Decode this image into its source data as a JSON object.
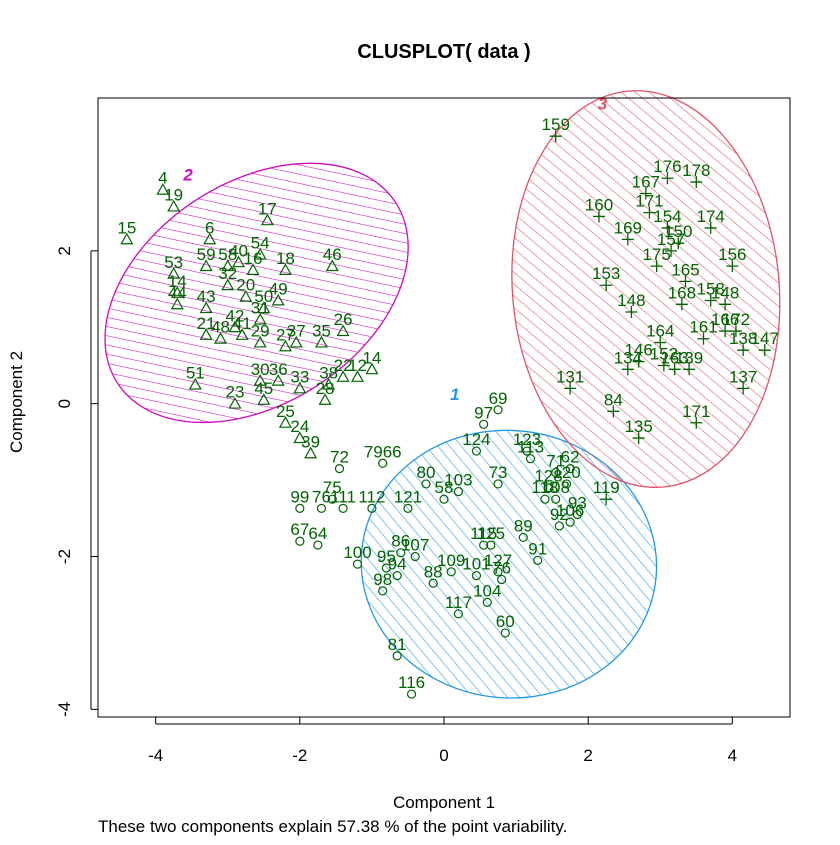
{
  "chart_data": {
    "type": "scatter",
    "title": "CLUSPLOT( data )",
    "xlabel": "Component 1",
    "ylabel": "Component 2",
    "subtitle": "These two components explain 57.38 % of the point variability.",
    "xlim": [
      -4.8,
      4.8
    ],
    "ylim": [
      -4.1,
      4.0
    ],
    "x_ticks": [
      -4,
      -2,
      0,
      2,
      4
    ],
    "y_ticks": [
      -4,
      -2,
      0,
      2
    ],
    "x_tick_labels": [
      "-4",
      "-2",
      "0",
      "2",
      "4"
    ],
    "y_tick_labels": [
      "-4",
      "-2",
      "0",
      "2"
    ],
    "grid": false,
    "label_color": "#006400",
    "clusters": [
      {
        "name": "1",
        "color": "#2297E6",
        "marker": "circle",
        "ellipse": {
          "cx": 0.9,
          "cy": -2.1,
          "rx": 2.05,
          "ry": 1.75,
          "angle": 5
        },
        "label_pos": {
          "x": 0.15,
          "y": 0.05
        },
        "points": [
          {
            "id": "69",
            "x": 0.75,
            "y": -0.08
          },
          {
            "id": "97",
            "x": 0.55,
            "y": -0.27
          },
          {
            "id": "124",
            "x": 0.45,
            "y": -0.62
          },
          {
            "id": "123",
            "x": 1.15,
            "y": -0.62
          },
          {
            "id": "113",
            "x": 1.2,
            "y": -0.72
          },
          {
            "id": "7966",
            "x": -0.85,
            "y": -0.78
          },
          {
            "id": "72",
            "x": -1.45,
            "y": -0.85
          },
          {
            "id": "80",
            "x": -0.25,
            "y": -1.05
          },
          {
            "id": "73",
            "x": 0.75,
            "y": -1.05
          },
          {
            "id": "103",
            "x": 0.2,
            "y": -1.15
          },
          {
            "id": "58",
            "x": 0.0,
            "y": -1.25
          },
          {
            "id": "75",
            "x": -1.55,
            "y": -1.25
          },
          {
            "id": "99",
            "x": -2.0,
            "y": -1.37
          },
          {
            "id": "76",
            "x": -1.7,
            "y": -1.37
          },
          {
            "id": "111",
            "x": -1.4,
            "y": -1.37
          },
          {
            "id": "112",
            "x": -1.0,
            "y": -1.37
          },
          {
            "id": "121",
            "x": -0.5,
            "y": -1.37
          },
          {
            "id": "67",
            "x": -2.0,
            "y": -1.8
          },
          {
            "id": "64",
            "x": -1.75,
            "y": -1.85
          },
          {
            "id": "89",
            "x": 1.1,
            "y": -1.75
          },
          {
            "id": "86",
            "x": -0.6,
            "y": -1.95
          },
          {
            "id": "100",
            "x": -1.2,
            "y": -2.1
          },
          {
            "id": "95",
            "x": -0.8,
            "y": -2.15
          },
          {
            "id": "91",
            "x": 1.3,
            "y": -2.05
          },
          {
            "id": "94",
            "x": -0.65,
            "y": -2.25
          },
          {
            "id": "98",
            "x": -0.85,
            "y": -2.45
          },
          {
            "id": "117",
            "x": 0.2,
            "y": -2.75
          },
          {
            "id": "104",
            "x": 0.6,
            "y": -2.6
          },
          {
            "id": "60",
            "x": 0.85,
            "y": -3.0
          },
          {
            "id": "81",
            "x": -0.65,
            "y": -3.3
          },
          {
            "id": "116",
            "x": -0.45,
            "y": -3.8
          },
          {
            "id": "93",
            "x": 1.85,
            "y": -1.45
          },
          {
            "id": "92",
            "x": 1.6,
            "y": -1.6
          },
          {
            "id": "106",
            "x": 1.75,
            "y": -1.55
          },
          {
            "id": "71",
            "x": 1.55,
            "y": -0.9
          },
          {
            "id": "62",
            "x": 1.75,
            "y": -0.85
          },
          {
            "id": "120",
            "x": 1.7,
            "y": -1.05
          },
          {
            "id": "128",
            "x": 1.45,
            "y": -1.1
          },
          {
            "id": "118",
            "x": 1.4,
            "y": -1.25
          },
          {
            "id": "108",
            "x": 1.55,
            "y": -1.25
          },
          {
            "id": "115",
            "x": 0.55,
            "y": -1.85
          },
          {
            "id": "125",
            "x": 0.65,
            "y": -1.85
          },
          {
            "id": "127",
            "x": 0.75,
            "y": -2.2
          },
          {
            "id": "109",
            "x": 0.1,
            "y": -2.2
          },
          {
            "id": "88",
            "x": -0.15,
            "y": -2.35
          },
          {
            "id": "76b",
            "x": 0.8,
            "y": -2.3
          },
          {
            "id": "107",
            "x": -0.4,
            "y": -2.0
          },
          {
            "id": "101",
            "x": 0.45,
            "y": -2.25
          }
        ]
      },
      {
        "name": "2",
        "color": "#CD0BBC",
        "marker": "triangle",
        "ellipse": {
          "cx": -2.6,
          "cy": 1.45,
          "rx": 2.3,
          "ry": 1.45,
          "angle": -33
        },
        "label_pos": {
          "x": -3.55,
          "y": 2.92
        },
        "points": [
          {
            "id": "4",
            "x": -3.9,
            "y": 2.8
          },
          {
            "id": "19",
            "x": -3.75,
            "y": 2.58
          },
          {
            "id": "15",
            "x": -4.4,
            "y": 2.15
          },
          {
            "id": "6",
            "x": -3.25,
            "y": 2.15
          },
          {
            "id": "17",
            "x": -2.45,
            "y": 2.4
          },
          {
            "id": "46",
            "x": -1.55,
            "y": 1.8
          },
          {
            "id": "53",
            "x": -3.75,
            "y": 1.7
          },
          {
            "id": "59",
            "x": -3.3,
            "y": 1.8
          },
          {
            "id": "54",
            "x": -2.55,
            "y": 1.95
          },
          {
            "id": "40",
            "x": -2.85,
            "y": 1.85
          },
          {
            "id": "58",
            "x": -3.0,
            "y": 1.8
          },
          {
            "id": "16",
            "x": -2.65,
            "y": 1.75
          },
          {
            "id": "18",
            "x": -2.2,
            "y": 1.75
          },
          {
            "id": "14",
            "x": -3.7,
            "y": 1.45
          },
          {
            "id": "44",
            "x": -3.7,
            "y": 1.3
          },
          {
            "id": "43",
            "x": -3.3,
            "y": 1.25
          },
          {
            "id": "32",
            "x": -3.0,
            "y": 1.55
          },
          {
            "id": "49",
            "x": -2.3,
            "y": 1.35
          },
          {
            "id": "50",
            "x": -2.5,
            "y": 1.25
          },
          {
            "id": "21",
            "x": -3.3,
            "y": 0.9
          },
          {
            "id": "48",
            "x": -3.1,
            "y": 0.85
          },
          {
            "id": "41",
            "x": -2.8,
            "y": 0.9
          },
          {
            "id": "29",
            "x": -2.55,
            "y": 0.8
          },
          {
            "id": "27",
            "x": -2.2,
            "y": 0.75
          },
          {
            "id": "37",
            "x": -2.05,
            "y": 0.8
          },
          {
            "id": "35",
            "x": -1.7,
            "y": 0.8
          },
          {
            "id": "26",
            "x": -1.4,
            "y": 0.95
          },
          {
            "id": "51",
            "x": -3.45,
            "y": 0.25
          },
          {
            "id": "30",
            "x": -2.55,
            "y": 0.3
          },
          {
            "id": "36",
            "x": -2.3,
            "y": 0.3
          },
          {
            "id": "33",
            "x": -2.0,
            "y": 0.2
          },
          {
            "id": "38",
            "x": -1.6,
            "y": 0.25
          },
          {
            "id": "22",
            "x": -1.4,
            "y": 0.35
          },
          {
            "id": "12",
            "x": -1.2,
            "y": 0.35
          },
          {
            "id": "14b",
            "x": -1.0,
            "y": 0.45
          },
          {
            "id": "23",
            "x": -2.9,
            "y": 0.0
          },
          {
            "id": "45",
            "x": -2.5,
            "y": 0.05
          },
          {
            "id": "28",
            "x": -1.65,
            "y": 0.05
          },
          {
            "id": "25",
            "x": -2.2,
            "y": -0.25
          },
          {
            "id": "24",
            "x": -2.0,
            "y": -0.45
          },
          {
            "id": "39",
            "x": -1.85,
            "y": -0.65
          },
          {
            "id": "31",
            "x": -2.55,
            "y": 1.1
          },
          {
            "id": "20",
            "x": -2.75,
            "y": 1.4
          },
          {
            "id": "42",
            "x": -2.9,
            "y": 1.0
          }
        ]
      },
      {
        "name": "3",
        "color": "#DF536B",
        "marker": "plus",
        "ellipse": {
          "cx": 2.8,
          "cy": 1.5,
          "rx": 1.85,
          "ry": 2.6,
          "angle": -5
        },
        "label_pos": {
          "x": 2.2,
          "y": 3.85
        },
        "points": [
          {
            "id": "159",
            "x": 1.55,
            "y": 3.5
          },
          {
            "id": "176",
            "x": 3.1,
            "y": 2.95
          },
          {
            "id": "178",
            "x": 3.5,
            "y": 2.9
          },
          {
            "id": "167",
            "x": 2.8,
            "y": 2.75
          },
          {
            "id": "160",
            "x": 2.15,
            "y": 2.45
          },
          {
            "id": "171",
            "x": 2.85,
            "y": 2.5
          },
          {
            "id": "174",
            "x": 3.7,
            "y": 2.3
          },
          {
            "id": "154",
            "x": 3.1,
            "y": 2.3
          },
          {
            "id": "169",
            "x": 2.55,
            "y": 2.15
          },
          {
            "id": "150",
            "x": 3.25,
            "y": 2.1
          },
          {
            "id": "157",
            "x": 3.15,
            "y": 2.0
          },
          {
            "id": "175",
            "x": 2.95,
            "y": 1.8
          },
          {
            "id": "156",
            "x": 4.0,
            "y": 1.8
          },
          {
            "id": "153",
            "x": 2.25,
            "y": 1.55
          },
          {
            "id": "165",
            "x": 3.35,
            "y": 1.6
          },
          {
            "id": "148",
            "x": 2.6,
            "y": 1.2
          },
          {
            "id": "168",
            "x": 3.3,
            "y": 1.3
          },
          {
            "id": "158",
            "x": 3.7,
            "y": 1.35
          },
          {
            "id": "148b",
            "x": 3.9,
            "y": 1.3
          },
          {
            "id": "161",
            "x": 3.6,
            "y": 0.85
          },
          {
            "id": "166",
            "x": 3.9,
            "y": 0.95
          },
          {
            "id": "172",
            "x": 4.05,
            "y": 0.95
          },
          {
            "id": "138",
            "x": 4.15,
            "y": 0.7
          },
          {
            "id": "147",
            "x": 4.45,
            "y": 0.7
          },
          {
            "id": "164",
            "x": 3.0,
            "y": 0.8
          },
          {
            "id": "134",
            "x": 2.55,
            "y": 0.45
          },
          {
            "id": "139",
            "x": 3.4,
            "y": 0.45
          },
          {
            "id": "131",
            "x": 1.75,
            "y": 0.2
          },
          {
            "id": "137",
            "x": 4.15,
            "y": 0.2
          },
          {
            "id": "84",
            "x": 2.35,
            "y": -0.1
          },
          {
            "id": "171b",
            "x": 3.5,
            "y": -0.25
          },
          {
            "id": "135",
            "x": 2.7,
            "y": -0.45
          },
          {
            "id": "119",
            "x": 2.25,
            "y": -1.25
          },
          {
            "id": "146",
            "x": 2.7,
            "y": 0.55
          },
          {
            "id": "152",
            "x": 3.05,
            "y": 0.5
          },
          {
            "id": "163",
            "x": 3.2,
            "y": 0.45
          }
        ]
      }
    ]
  }
}
